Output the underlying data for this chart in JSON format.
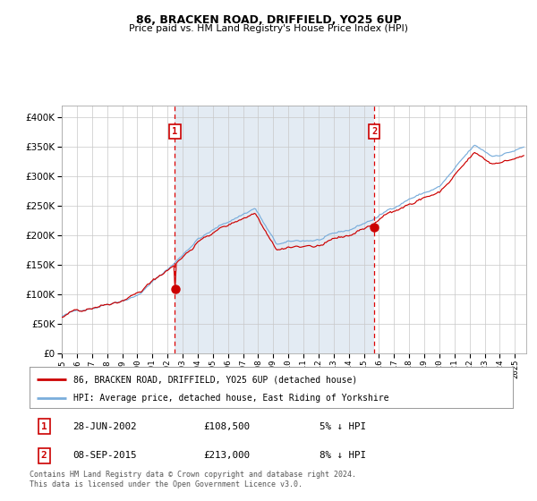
{
  "title1": "86, BRACKEN ROAD, DRIFFIELD, YO25 6UP",
  "title2": "Price paid vs. HM Land Registry's House Price Index (HPI)",
  "legend1": "86, BRACKEN ROAD, DRIFFIELD, YO25 6UP (detached house)",
  "legend2": "HPI: Average price, detached house, East Riding of Yorkshire",
  "sale1_date": "28-JUN-2002",
  "sale1_price": 108500,
  "sale2_date": "08-SEP-2015",
  "sale2_price": 213000,
  "sale1_pct": "5% ↓ HPI",
  "sale2_pct": "8% ↓ HPI",
  "footnote": "Contains HM Land Registry data © Crown copyright and database right 2024.\nThis data is licensed under the Open Government Licence v3.0.",
  "hpi_color": "#7aaedc",
  "property_color": "#cc0000",
  "shade_color": "#dce6f1",
  "vline_color": "#dd0000",
  "box_color": "#cc0000",
  "ylim_max": 420000,
  "yticks": [
    0,
    50000,
    100000,
    150000,
    200000,
    250000,
    300000,
    350000,
    400000
  ]
}
